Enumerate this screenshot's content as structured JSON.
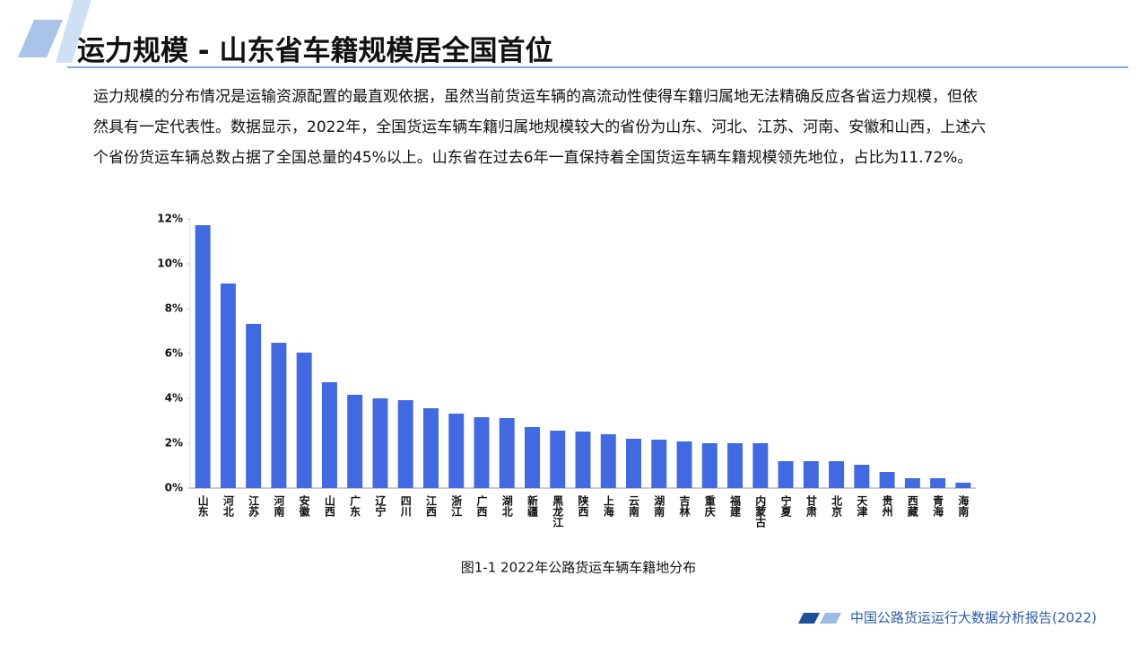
{
  "header": {
    "title": "运力规模 - 山东省车籍规模居全国首位"
  },
  "body": {
    "lines": [
      "运力规模的分布情况是运输资源配置的最直观依据，虽然当前货运车辆的高流动性使得车籍归属地无法精确反应各省运力规模，但依",
      "然具有一定代表性。数据显示，2022年，全国货运车辆车籍归属地规模较大的省份为山东、河北、江苏、河南、安徽和山西，上述六",
      "个省份货运车辆总数占据了全国总量的45%以上。山东省在过去6年一直保持着全国货运车辆车籍规模领先地位，占比为11.72%。"
    ]
  },
  "chart_data": {
    "type": "bar",
    "categories": [
      "山东",
      "河北",
      "江苏",
      "河南",
      "安徽",
      "山西",
      "广东",
      "辽宁",
      "四川",
      "江西",
      "浙江",
      "广西",
      "湖北",
      "新疆",
      "黑龙江",
      "陕西",
      "上海",
      "云南",
      "湖南",
      "吉林",
      "重庆",
      "福建",
      "内蒙古",
      "宁夏",
      "甘肃",
      "北京",
      "天津",
      "贵州",
      "西藏",
      "青海",
      "海南"
    ],
    "values": [
      11.72,
      9.12,
      7.32,
      6.48,
      6.04,
      4.72,
      4.16,
      4.0,
      3.92,
      3.56,
      3.32,
      3.16,
      3.12,
      2.72,
      2.56,
      2.52,
      2.4,
      2.2,
      2.16,
      2.08,
      2.0,
      2.0,
      2.0,
      1.2,
      1.2,
      1.2,
      1.04,
      0.72,
      0.44,
      0.44,
      0.24
    ],
    "color": "#4169e1",
    "ylim": [
      0,
      12
    ],
    "yticks": [
      {
        "value": 0,
        "label": "0%"
      },
      {
        "value": 2,
        "label": "2%"
      },
      {
        "value": 4,
        "label": "4%"
      },
      {
        "value": 6,
        "label": "6%"
      },
      {
        "value": 8,
        "label": "8%"
      },
      {
        "value": 10,
        "label": "10%"
      },
      {
        "value": 12,
        "label": "12%"
      }
    ],
    "grid": false
  },
  "caption": "图1-1 2022年公路货运车辆车籍地分布",
  "footer": "中国公路货运运行大数据分析报告(2022)"
}
